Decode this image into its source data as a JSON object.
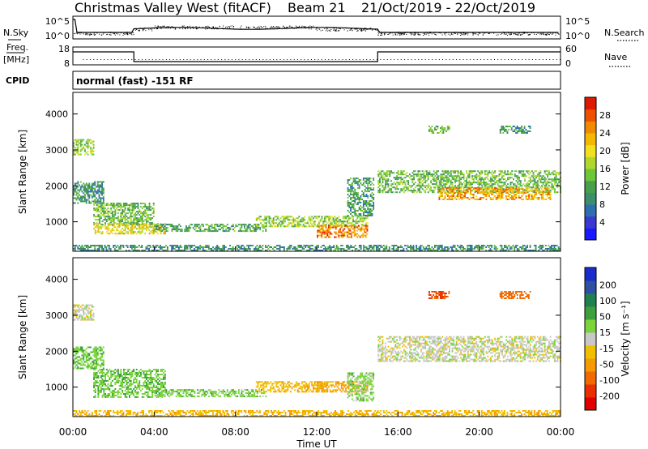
{
  "header": {
    "station": "Christmas Valley West (fitACF)",
    "beam": "Beam 21",
    "dates": "21/Oct/2019 - 22/Oct/2019",
    "mode": "normal (fast) -151 RF"
  },
  "side_labels": {
    "nsky": "N.Sky",
    "nsearch": "N.Search",
    "freq_top": "Freq.",
    "freq_unit": "[MHz]",
    "nave": "Nave",
    "cpid": "CPID"
  },
  "noise_panel": {
    "left_ticks": [
      "10^5",
      "10^0"
    ],
    "right_ticks": [
      "10^5",
      "10^0"
    ]
  },
  "freq_panel": {
    "left_ticks": [
      "18",
      "8"
    ],
    "right_ticks": [
      "60",
      "0"
    ]
  },
  "colors": {
    "power_scale": [
      "#1a1aff",
      "#3a3ad0",
      "#2f6fb0",
      "#3c8f6a",
      "#4aa04a",
      "#6ec63a",
      "#b0d82a",
      "#f0e020",
      "#f5b800",
      "#f08a00",
      "#ee5000",
      "#dd1a00"
    ],
    "velocity_scale": [
      "#1a2ccc",
      "#2f4fa0",
      "#1f8050",
      "#3da03d",
      "#7ad43a",
      "#c8c8c8",
      "#f0c000",
      "#f59a00",
      "#f06a00",
      "#e83000",
      "#e00000"
    ]
  },
  "chart_data": [
    {
      "type": "heatmap",
      "name": "power",
      "ylabel": "Slant Range [km]",
      "ylim": [
        180,
        4600
      ],
      "yticks": [
        "1000",
        "2000",
        "3000",
        "4000"
      ],
      "xlim": [
        0,
        24
      ],
      "colorbar": {
        "label": "Power [dB]",
        "range": [
          0,
          32
        ],
        "ticks": [
          "4",
          "8",
          "12",
          "16",
          "20",
          "24",
          "28"
        ]
      },
      "regions": [
        {
          "t": [
            0.0,
            1.0
          ],
          "r": [
            2850,
            3300
          ],
          "v": 16
        },
        {
          "t": [
            0.0,
            1.5
          ],
          "r": [
            1500,
            2100
          ],
          "v": 10
        },
        {
          "t": [
            1.0,
            4.0
          ],
          "r": [
            900,
            1500
          ],
          "v": 14
        },
        {
          "t": [
            1.0,
            4.5
          ],
          "r": [
            650,
            950
          ],
          "v": 20
        },
        {
          "t": [
            4.0,
            9.5
          ],
          "r": [
            720,
            920
          ],
          "v": 12
        },
        {
          "t": [
            9.0,
            14.5
          ],
          "r": [
            850,
            1150
          ],
          "v": 16
        },
        {
          "t": [
            12.0,
            14.5
          ],
          "r": [
            550,
            900
          ],
          "v": 26
        },
        {
          "t": [
            13.5,
            14.8
          ],
          "r": [
            1150,
            2200
          ],
          "v": 11
        },
        {
          "t": [
            15.0,
            24.0
          ],
          "r": [
            1800,
            2400
          ],
          "v": 14
        },
        {
          "t": [
            18.0,
            23.5
          ],
          "r": [
            1600,
            1950
          ],
          "v": 24
        },
        {
          "t": [
            17.5,
            18.5
          ],
          "r": [
            3450,
            3650
          ],
          "v": 14
        },
        {
          "t": [
            21.0,
            22.5
          ],
          "r": [
            3450,
            3650
          ],
          "v": 10
        },
        {
          "t": [
            0.0,
            24.0
          ],
          "r": [
            180,
            320
          ],
          "v": 10
        }
      ]
    },
    {
      "type": "heatmap",
      "name": "velocity",
      "ylabel": "Slant Range [km]",
      "xlabel": "Time UT",
      "ylim": [
        180,
        4600
      ],
      "yticks": [
        "1000",
        "2000",
        "3000",
        "4000"
      ],
      "xlim": [
        0,
        24
      ],
      "xticks": [
        "00:00",
        "04:00",
        "08:00",
        "12:00",
        "16:00",
        "20:00",
        "00:00"
      ],
      "colorbar": {
        "label": "Velocity [m s⁻¹]",
        "range": [
          -250,
          250
        ],
        "ticks": [
          "200",
          "100",
          "50",
          "15",
          "-15",
          "-50",
          "-100",
          "-200"
        ]
      },
      "regions": [
        {
          "t": [
            0.0,
            1.0
          ],
          "r": [
            2850,
            3300
          ],
          "v": 0
        },
        {
          "t": [
            0.0,
            1.5
          ],
          "r": [
            1500,
            2100
          ],
          "v": 40
        },
        {
          "t": [
            1.0,
            4.5
          ],
          "r": [
            700,
            1500
          ],
          "v": 40
        },
        {
          "t": [
            4.0,
            9.5
          ],
          "r": [
            720,
            920
          ],
          "v": 35
        },
        {
          "t": [
            9.0,
            12.5
          ],
          "r": [
            850,
            1150
          ],
          "v": -40
        },
        {
          "t": [
            12.0,
            14.5
          ],
          "r": [
            850,
            1150
          ],
          "v": -60
        },
        {
          "t": [
            13.5,
            14.8
          ],
          "r": [
            600,
            1400
          ],
          "v": 30
        },
        {
          "t": [
            15.0,
            24.0
          ],
          "r": [
            1700,
            2400
          ],
          "v": 0
        },
        {
          "t": [
            17.5,
            18.5
          ],
          "r": [
            3450,
            3650
          ],
          "v": -200
        },
        {
          "t": [
            21.0,
            22.5
          ],
          "r": [
            3450,
            3650
          ],
          "v": -150
        },
        {
          "t": [
            0.0,
            24.0
          ],
          "r": [
            180,
            320
          ],
          "v": -40
        }
      ]
    }
  ]
}
